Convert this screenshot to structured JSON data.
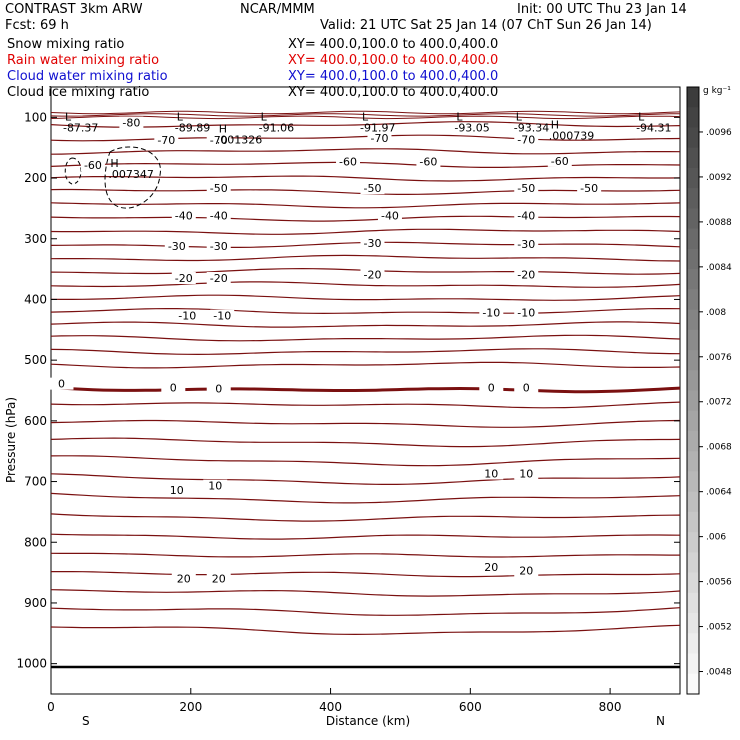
{
  "header": {
    "left_line1": "CONTRAST  3km ARW",
    "left_line2": "Fcst:    69 h",
    "center": "NCAR/MMM",
    "right_line1": "Init: 00 UTC Thu 23 Jan 14",
    "right_line2": "Valid: 21 UTC Sat 25 Jan 14 (07 ChT Sun 26 Jan 14)"
  },
  "fields": [
    {
      "label": "Snow mixing ratio",
      "xy": "XY= 400.0,100.0 to 400.0,400.0",
      "color": "#000000"
    },
    {
      "label": "Rain water mixing ratio",
      "xy": "XY= 400.0,100.0 to 400.0,400.0",
      "color": "#e00000"
    },
    {
      "label": "Cloud water mixing ratio",
      "xy": "XY= 400.0,100.0 to 400.0,400.0",
      "color": "#1010d0"
    },
    {
      "label": "Cloud ice mixing ratio",
      "xy": "XY= 400.0,100.0 to 400.0,400.0",
      "color": "#000000"
    }
  ],
  "chart_data": {
    "type": "contour",
    "xlabel": "Distance (km)",
    "ylabel": "Pressure (hPa)",
    "x_ticks": [
      0,
      200,
      400,
      600,
      800
    ],
    "x_tick_labels": [
      "0",
      "200",
      "400",
      "600",
      "800"
    ],
    "xlim": [
      0,
      900
    ],
    "y_ticks": [
      100,
      200,
      300,
      400,
      500,
      600,
      700,
      800,
      900,
      1000
    ],
    "y_tick_labels": [
      "100",
      "200",
      "300",
      "400",
      "500",
      "600",
      "700",
      "800",
      "900",
      "1000"
    ],
    "ylim": [
      50,
      1050
    ],
    "direction_left": "S",
    "direction_right": "N",
    "contour_color": "#7a1010",
    "zero_isotherm_bold": true,
    "isotherm_interval_c": 5,
    "isotherm_labels": [
      {
        "text": "-80",
        "x": 115,
        "p": 112
      },
      {
        "text": "-70",
        "x": 165,
        "p": 141
      },
      {
        "text": "-70",
        "x": 240,
        "p": 141
      },
      {
        "text": "-70",
        "x": 470,
        "p": 137
      },
      {
        "text": "-70",
        "x": 680,
        "p": 140
      },
      {
        "text": "-60",
        "x": 60,
        "p": 182
      },
      {
        "text": "-60",
        "x": 425,
        "p": 176
      },
      {
        "text": "-60",
        "x": 540,
        "p": 176
      },
      {
        "text": "-60",
        "x": 728,
        "p": 175
      },
      {
        "text": "-50",
        "x": 240,
        "p": 220
      },
      {
        "text": "-50",
        "x": 460,
        "p": 220
      },
      {
        "text": "-50",
        "x": 680,
        "p": 220
      },
      {
        "text": "-50",
        "x": 770,
        "p": 220
      },
      {
        "text": "-40",
        "x": 190,
        "p": 265
      },
      {
        "text": "-40",
        "x": 240,
        "p": 265
      },
      {
        "text": "-40",
        "x": 485,
        "p": 265
      },
      {
        "text": "-40",
        "x": 680,
        "p": 265
      },
      {
        "text": "-30",
        "x": 180,
        "p": 315
      },
      {
        "text": "-30",
        "x": 240,
        "p": 315
      },
      {
        "text": "-30",
        "x": 460,
        "p": 310
      },
      {
        "text": "-30",
        "x": 680,
        "p": 312
      },
      {
        "text": "-20",
        "x": 190,
        "p": 368
      },
      {
        "text": "-20",
        "x": 240,
        "p": 368
      },
      {
        "text": "-20",
        "x": 460,
        "p": 362
      },
      {
        "text": "-20",
        "x": 680,
        "p": 362
      },
      {
        "text": "-10",
        "x": 195,
        "p": 430
      },
      {
        "text": "-10",
        "x": 245,
        "p": 430
      },
      {
        "text": "-10",
        "x": 630,
        "p": 425
      },
      {
        "text": "-10",
        "x": 680,
        "p": 425
      },
      {
        "text": "0",
        "x": 15,
        "p": 542
      },
      {
        "text": "0",
        "x": 175,
        "p": 548
      },
      {
        "text": "0",
        "x": 240,
        "p": 550
      },
      {
        "text": "0",
        "x": 630,
        "p": 548
      },
      {
        "text": "0",
        "x": 680,
        "p": 548
      },
      {
        "text": "10",
        "x": 180,
        "p": 717
      },
      {
        "text": "10",
        "x": 235,
        "p": 710
      },
      {
        "text": "10",
        "x": 630,
        "p": 690
      },
      {
        "text": "10",
        "x": 680,
        "p": 690
      },
      {
        "text": "20",
        "x": 190,
        "p": 863
      },
      {
        "text": "20",
        "x": 240,
        "p": 863
      },
      {
        "text": "20",
        "x": 630,
        "p": 844
      },
      {
        "text": "20",
        "x": 680,
        "p": 850
      }
    ],
    "extrema": [
      {
        "type": "L",
        "value": "-87.37",
        "x": 20,
        "p": 105
      },
      {
        "type": "L",
        "value": "-89.89",
        "x": 180,
        "p": 105
      },
      {
        "type": "L",
        "value": "-91.06",
        "x": 300,
        "p": 105
      },
      {
        "type": "L",
        "value": "-91.97",
        "x": 445,
        "p": 105
      },
      {
        "type": "L",
        "value": "-93.05",
        "x": 580,
        "p": 105
      },
      {
        "type": "L",
        "value": "-93.34",
        "x": 665,
        "p": 105
      },
      {
        "type": "L",
        "value": "-94.31",
        "x": 840,
        "p": 105
      },
      {
        "type": "H",
        "value": ".007347",
        "x": 85,
        "p": 182
      },
      {
        "type": "H",
        "value": ".001326",
        "x": 240,
        "p": 125
      },
      {
        "type": "H",
        "value": ".000739",
        "x": 715,
        "p": 118
      }
    ],
    "colorbar": {
      "unit": "g kg⁻¹",
      "levels": [
        0.0096,
        0.0092,
        0.0088,
        0.0084,
        0.008,
        0.0076,
        0.0072,
        0.0068,
        0.0064,
        0.006,
        0.0056,
        0.0052,
        0.0048
      ],
      "labels": [
        ".0096",
        ".0092",
        ".0088",
        ".0084",
        ".008",
        ".0076",
        ".0072",
        ".0068",
        ".0064",
        ".006",
        ".0056",
        ".0052",
        ".0048"
      ]
    }
  }
}
